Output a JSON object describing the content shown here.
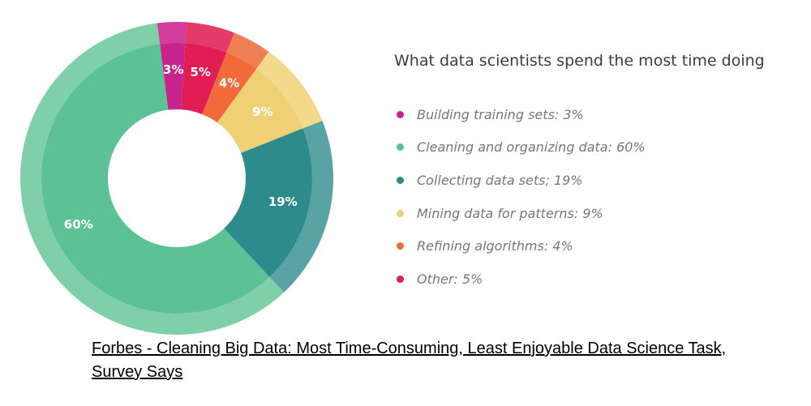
{
  "chart_data": {
    "type": "pie",
    "title": "What data scientists spend the most time doing",
    "slices": [
      {
        "name": "Building training sets",
        "value": 3,
        "label": "3%",
        "legend": "Building training sets: 3%",
        "color": "#c9248e",
        "ring_color": "#d23c9a"
      },
      {
        "name": "Other",
        "value": 5,
        "label": "5%",
        "legend": "Other: 5%",
        "color": "#e11d53",
        "ring_color": "#e43a68"
      },
      {
        "name": "Refining algorithms",
        "value": 4,
        "label": "4%",
        "legend": "Refining algorithms: 4%",
        "color": "#f06a3a",
        "ring_color": "#f07e55"
      },
      {
        "name": "Mining data for patterns",
        "value": 9,
        "label": "9%",
        "legend": "Mining data for patterns: 9%",
        "color": "#f0d074",
        "ring_color": "#f2d98c"
      },
      {
        "name": "Collecting data sets",
        "value": 19,
        "label": "19%",
        "legend": "Collecting data sets; 19%",
        "color": "#2e8b8b",
        "ring_color": "#5aa3a5"
      },
      {
        "name": "Cleaning and organizing data",
        "value": 60,
        "label": "60%",
        "legend": "Cleaning and organizing data: 60%",
        "color": "#5cc295",
        "ring_color": "#7fcfa9"
      }
    ],
    "legend_order": [
      "Building training sets",
      "Cleaning and organizing data",
      "Collecting data sets",
      "Mining data for patterns",
      "Refining algorithms",
      "Other"
    ],
    "legend_position": "right"
  },
  "caption": "Forbes - Cleaning Big Data: Most Time-Consuming, Least Enjoyable Data Science Task, Survey Says"
}
